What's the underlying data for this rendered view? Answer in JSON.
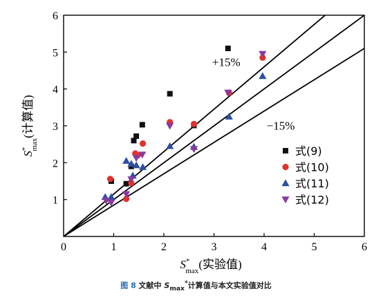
{
  "chart_data": {
    "type": "scatter",
    "xlim": [
      0,
      6
    ],
    "ylim": [
      0,
      6
    ],
    "xticks": [
      "0",
      "1",
      "2",
      "3",
      "4",
      "5",
      "6"
    ],
    "yticks": [
      "1",
      "2",
      "3",
      "4",
      "5",
      "6"
    ],
    "xlabel": {
      "base": "S",
      "sup": "*",
      "sub": "max",
      "rest": "(实验值)"
    },
    "ylabel": {
      "base": "S",
      "sup": "*",
      "sub": "max",
      "rest": "(计算值)"
    },
    "grid": false,
    "legend_position": "lower-right",
    "reference_lines": [
      {
        "label": "+15%",
        "slope": 1.15
      },
      {
        "label": "",
        "slope": 1.0
      },
      {
        "label": "−15%",
        "slope": 0.85
      }
    ],
    "series": [
      {
        "name": "式(9)",
        "marker": "square",
        "color": "#111111",
        "points": [
          [
            0.95,
            1.5
          ],
          [
            1.25,
            1.43
          ],
          [
            1.35,
            1.9
          ],
          [
            1.4,
            2.6
          ],
          [
            1.45,
            2.72
          ],
          [
            1.57,
            3.03
          ],
          [
            2.12,
            3.87
          ],
          [
            2.6,
            3.01
          ],
          [
            3.28,
            5.1
          ]
        ]
      },
      {
        "name": "式(10)",
        "marker": "circle",
        "color": "#e2322c",
        "points": [
          [
            0.93,
            1.56
          ],
          [
            1.25,
            1.02
          ],
          [
            1.35,
            1.45
          ],
          [
            1.43,
            2.25
          ],
          [
            1.48,
            2.2
          ],
          [
            1.58,
            2.52
          ],
          [
            2.12,
            3.1
          ],
          [
            2.6,
            3.05
          ],
          [
            3.3,
            3.9
          ],
          [
            3.97,
            4.85
          ]
        ]
      },
      {
        "name": "式(11)",
        "marker": "triangle-up",
        "color": "#2d4fa0",
        "points": [
          [
            0.83,
            1.07
          ],
          [
            0.95,
            1.07
          ],
          [
            1.25,
            2.05
          ],
          [
            1.35,
            1.97
          ],
          [
            1.38,
            1.65
          ],
          [
            1.45,
            1.93
          ],
          [
            1.58,
            1.88
          ],
          [
            2.12,
            2.45
          ],
          [
            2.6,
            2.43
          ],
          [
            3.3,
            3.25
          ],
          [
            3.97,
            4.35
          ]
        ]
      },
      {
        "name": "式(12)",
        "marker": "triangle-down",
        "color": "#8a3aa0",
        "points": [
          [
            0.85,
            0.97
          ],
          [
            0.95,
            0.92
          ],
          [
            1.25,
            1.15
          ],
          [
            1.35,
            1.55
          ],
          [
            1.45,
            2.13
          ],
          [
            1.57,
            2.22
          ],
          [
            2.12,
            3.0
          ],
          [
            2.6,
            2.37
          ],
          [
            3.28,
            3.9
          ],
          [
            3.97,
            4.95
          ]
        ]
      }
    ]
  },
  "caption": {
    "figure_label": "图 8",
    "text_before": " 文献中 ",
    "symbol_base": "S",
    "symbol_sub": "max",
    "symbol_sup": "*",
    "text_after": "计算值与本文实验值对比"
  }
}
